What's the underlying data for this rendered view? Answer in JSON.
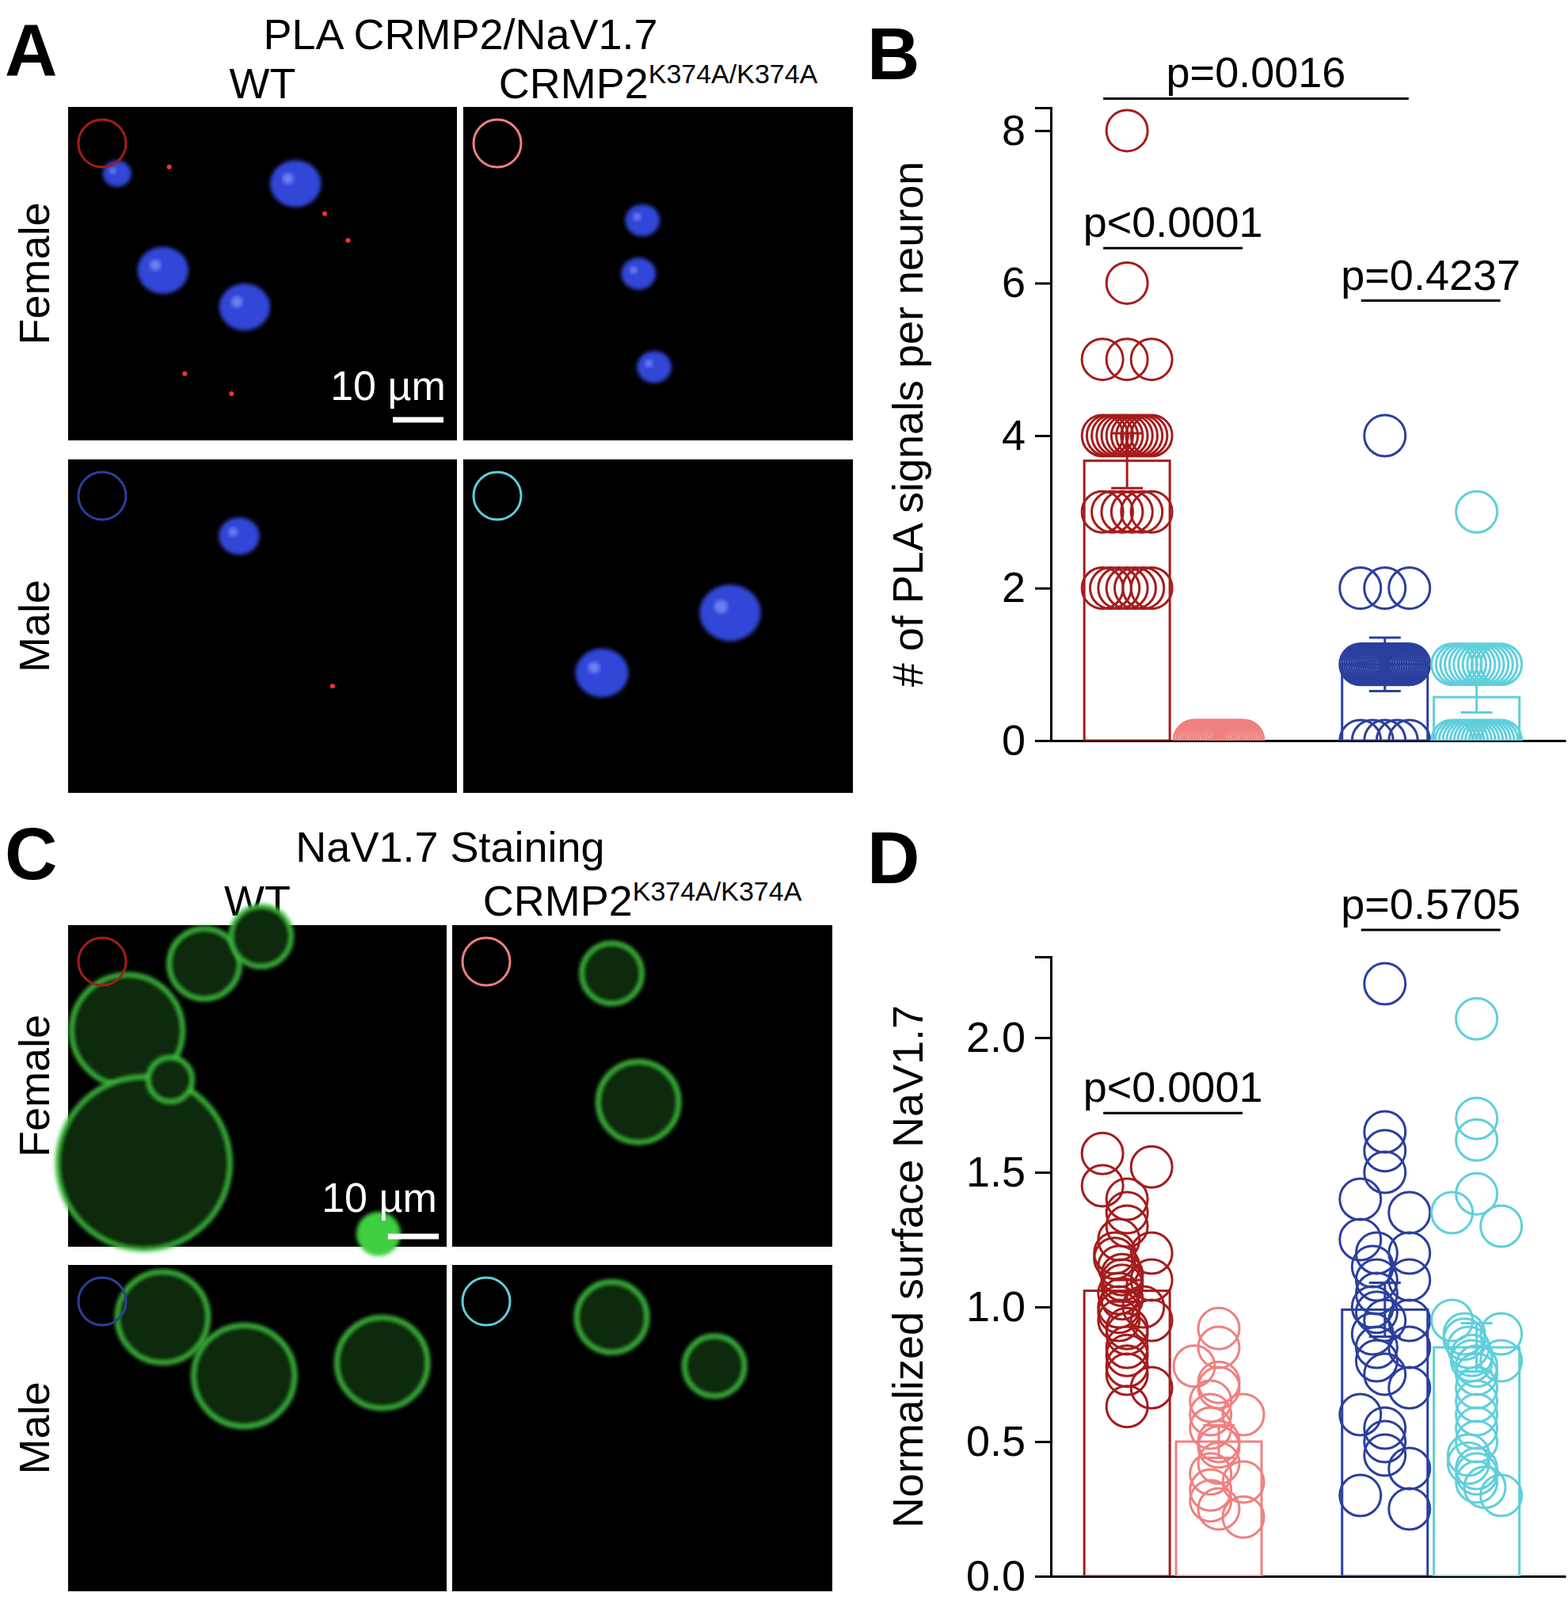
{
  "panels": [
    {
      "letter": "A",
      "title": "PLA CRMP2/NaV1.7",
      "columns": [
        "WT",
        {
          "text": "CRMP2",
          "sup": "K374A/K374A"
        }
      ],
      "rows": [
        "Female",
        "Male"
      ],
      "scale_bar": "10 µm"
    },
    {
      "letter": "C",
      "title": "NaV1.7 Staining",
      "columns": [
        "WT",
        {
          "text": "CRMP2",
          "sup": "K374A/K374A"
        }
      ],
      "rows": [
        "Female",
        "Male"
      ],
      "scale_bar": "10 µm"
    }
  ],
  "chart_data": [
    {
      "type": "bar",
      "panel": "B",
      "ylabel": "# of PLA signals per neuron",
      "categories": [
        null,
        null,
        null,
        null
      ],
      "values": [
        3.67,
        0,
        1.0,
        0.57
      ],
      "errors": [
        0.36,
        0,
        0.35,
        0.2
      ],
      "colors": [
        "#a51c1c",
        "#f08080",
        "#2b3f9e",
        "#5fcfdc"
      ],
      "points": [
        [
          8,
          6,
          5,
          5,
          5,
          4,
          4,
          4,
          4,
          4,
          4,
          4,
          4,
          4,
          4,
          4,
          3,
          3,
          3,
          3,
          3,
          3,
          2,
          2,
          2,
          2,
          2,
          2,
          2
        ],
        [
          0,
          0,
          0,
          0,
          0,
          0,
          0,
          0,
          0,
          0,
          0,
          0,
          0,
          0,
          0,
          0,
          0,
          0,
          0,
          0
        ],
        [
          4,
          2,
          2,
          2,
          1,
          1,
          1,
          1,
          1,
          1,
          1,
          1,
          1,
          1,
          1,
          1,
          1,
          1,
          1,
          1,
          1,
          1,
          1,
          1,
          1,
          1,
          0,
          0,
          0,
          0,
          0
        ],
        [
          3,
          1,
          1,
          1,
          1,
          1,
          1,
          1,
          1,
          1,
          1,
          1,
          1,
          0,
          0,
          0,
          0,
          0,
          0,
          0,
          0,
          0,
          0,
          0,
          0,
          0,
          0
        ]
      ],
      "ylim": [
        0,
        8.3
      ],
      "yticks": [
        0,
        2,
        4,
        6,
        8
      ],
      "annotations": [
        {
          "text": "p=0.0016",
          "from": 0,
          "to": 2,
          "y": 8.42
        },
        {
          "text": "p<0.0001",
          "from": 0,
          "to": 1,
          "y": 6.46
        },
        {
          "text": "p=0.4237",
          "from": 2,
          "to": 3,
          "y": 5.77
        }
      ]
    },
    {
      "type": "bar",
      "panel": "D",
      "ylabel": "Normalized surface NaV1.7",
      "categories": [
        null,
        null,
        null,
        null
      ],
      "values": [
        1.06,
        0.5,
        0.99,
        0.85
      ],
      "errors": [
        0.04,
        0.06,
        0.1,
        0.09
      ],
      "colors": [
        "#a51c1c",
        "#f08080",
        "#2b3f9e",
        "#5fcfdc"
      ],
      "points": [
        [
          1.57,
          1.52,
          1.45,
          1.4,
          1.35,
          1.3,
          1.25,
          1.2,
          1.18,
          1.15,
          1.12,
          1.1,
          1.08,
          1.05,
          1.03,
          1.0,
          0.98,
          0.95,
          0.92,
          0.9,
          0.85,
          0.82,
          0.78,
          0.75,
          0.7,
          0.63,
          1.1,
          1.0,
          0.95,
          1.2
        ],
        [
          0.92,
          0.85,
          0.78,
          0.72,
          0.7,
          0.65,
          0.6,
          0.55,
          0.5,
          0.48,
          0.42,
          0.38,
          0.32,
          0.28,
          0.25,
          0.22,
          0.35,
          0.6
        ],
        [
          2.2,
          1.65,
          1.58,
          1.5,
          1.4,
          1.35,
          1.25,
          1.2,
          1.15,
          1.1,
          1.05,
          1.0,
          0.98,
          0.95,
          0.9,
          0.85,
          0.8,
          0.75,
          0.7,
          0.6,
          0.55,
          0.5,
          0.45,
          0.4,
          0.3,
          0.25,
          1.1,
          0.95,
          1.2,
          0.85
        ],
        [
          2.07,
          1.7,
          1.62,
          1.42,
          1.35,
          1.3,
          0.95,
          0.9,
          0.88,
          0.85,
          0.82,
          0.8,
          0.78,
          0.75,
          0.7,
          0.65,
          0.6,
          0.55,
          0.5,
          0.45,
          0.42,
          0.4,
          0.38,
          0.35,
          0.33,
          0.3,
          0.9,
          0.8
        ]
      ],
      "ylim": [
        0,
        2.3
      ],
      "yticks": [
        {
          "value": 0,
          "label": "0.0"
        },
        0.5,
        {
          "value": 1,
          "label": "1.0"
        },
        1.5,
        {
          "value": 2,
          "label": "2.0"
        }
      ],
      "annotations": [
        {
          "text": "p<0.0001",
          "from": 0,
          "to": 1,
          "y": 1.72
        },
        {
          "text": "p=0.5705",
          "from": 2,
          "to": 3,
          "y": 2.4
        }
      ]
    }
  ]
}
